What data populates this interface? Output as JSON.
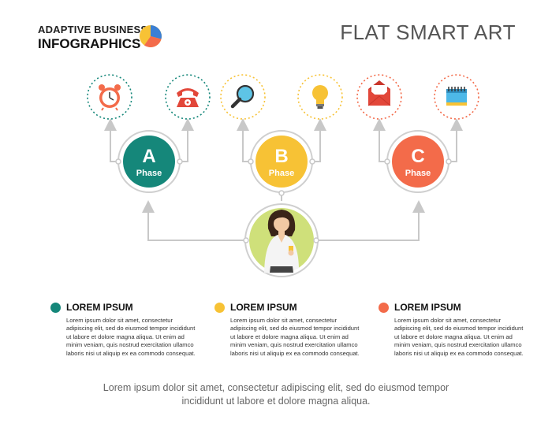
{
  "brand": {
    "line1": "ADAPTIVE BUSINESS",
    "line2": "INFOGRAPHICS"
  },
  "title": "FLAT SMART ART",
  "colors": {
    "green": "#15877a",
    "yellow": "#f7c235",
    "orange": "#f36b4a",
    "line": "#c8c8c8",
    "person_bg": "#cfe07a"
  },
  "phases": [
    {
      "letter": "A",
      "label": "Phase",
      "color": "#15877a",
      "icons": [
        "alarm-clock-icon",
        "telephone-icon"
      ]
    },
    {
      "letter": "B",
      "label": "Phase",
      "color": "#f7c235",
      "icons": [
        "magnifier-icon",
        "lightbulb-icon"
      ]
    },
    {
      "letter": "C",
      "label": "Phase",
      "color": "#f36b4a",
      "icons": [
        "envelope-icon",
        "calendar-icon"
      ]
    }
  ],
  "columns": [
    {
      "title": "LOREM IPSUM",
      "color": "#15877a",
      "text": "Lorem ipsum dolor sit amet, consectetur adipiscing elit, sed do eiusmod tempor incididunt ut labore et dolore magna aliqua. Ut enim ad minim veniam, quis nostrud exercitation ullamco laboris nisi ut aliquip ex ea commodo consequat."
    },
    {
      "title": "LOREM IPSUM",
      "color": "#f7c235",
      "text": "Lorem ipsum dolor sit amet, consectetur adipiscing elit, sed do eiusmod tempor incididunt ut labore et dolore magna aliqua. Ut enim ad minim veniam, quis nostrud exercitation ullamco laboris nisi ut aliquip ex ea commodo consequat."
    },
    {
      "title": "LOREM IPSUM",
      "color": "#f36b4a",
      "text": "Lorem ipsum dolor sit amet, consectetur adipiscing elit, sed do eiusmod tempor incididunt ut labore et dolore magna aliqua. Ut enim ad minim veniam, quis nostrud exercitation ullamco laboris nisi ut aliquip ex ea commodo consequat."
    }
  ],
  "footer": {
    "line1": "Lorem ipsum dolor sit amet, consectetur adipiscing elit, sed do eiusmod tempor",
    "line2": "incididunt ut labore et dolore magna aliqua."
  }
}
